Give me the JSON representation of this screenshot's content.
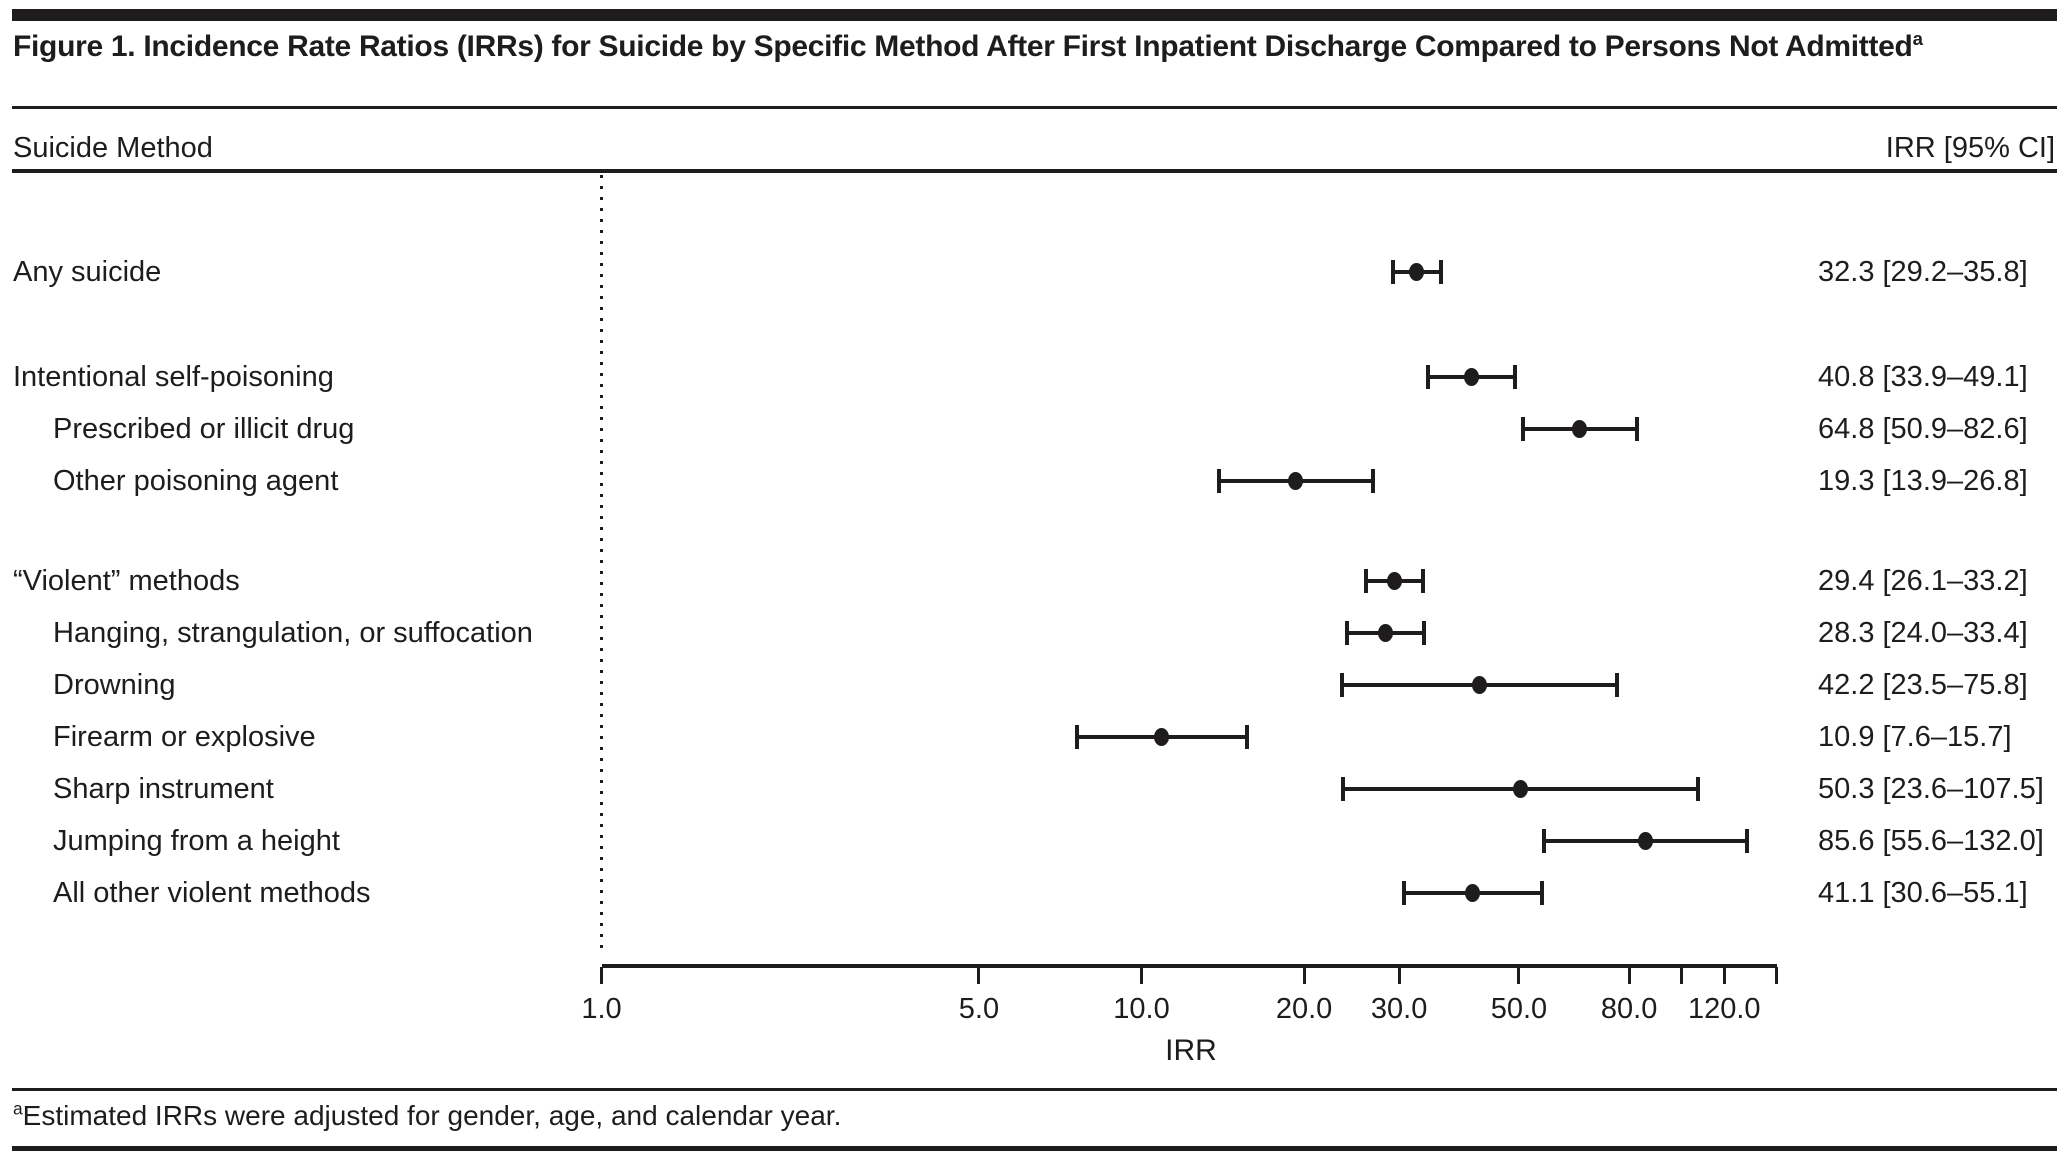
{
  "figure": {
    "title": "Figure 1. Incidence Rate Ratios (IRRs) for Suicide by Specific Method After First Inpatient Discharge Compared to Persons Not Admitted",
    "title_superscript": "a",
    "footnote_superscript": "a",
    "footnote": "Estimated IRRs were adjusted for gender, age, and calendar year."
  },
  "table_header": {
    "left": "Suicide Method",
    "right": "IRR [95% CI]"
  },
  "colors": {
    "ink": "#1e1c1d",
    "background": "#ffffff"
  },
  "chart_data": {
    "type": "scatter",
    "subtype": "forest-plot",
    "title": "Figure 1. Incidence Rate Ratios (IRRs) for Suicide by Specific Method After First Inpatient Discharge Compared to Persons Not Admitted",
    "xlabel": "IRR",
    "x_axis": {
      "scale": "log10",
      "min": 1.0,
      "max": 150,
      "reference_line_value": 1.0,
      "ticks": [
        {
          "value": 1.0,
          "label": "1.0"
        },
        {
          "value": 5.0,
          "label": "5.0"
        },
        {
          "value": 10.0,
          "label": "10.0"
        },
        {
          "value": 20.0,
          "label": "20.0"
        },
        {
          "value": 30.0,
          "label": "30.0"
        },
        {
          "value": 50.0,
          "label": "50.0"
        },
        {
          "value": 80.0,
          "label": "80.0"
        },
        {
          "value": 100.0,
          "label": ""
        },
        {
          "value": 120.0,
          "label": "120.0"
        },
        {
          "value": 150.0,
          "label": ""
        }
      ]
    },
    "rows": [
      {
        "label": "Any suicide",
        "indent": 0,
        "irr": 32.3,
        "ci_low": 29.2,
        "ci_high": 35.8,
        "value_text": "32.3 [29.2–35.8]"
      },
      {
        "label": "Intentional self-poisoning",
        "indent": 0,
        "irr": 40.8,
        "ci_low": 33.9,
        "ci_high": 49.1,
        "value_text": "40.8 [33.9–49.1]"
      },
      {
        "label": "Prescribed or illicit drug",
        "indent": 1,
        "irr": 64.8,
        "ci_low": 50.9,
        "ci_high": 82.6,
        "value_text": "64.8 [50.9–82.6]"
      },
      {
        "label": "Other poisoning agent",
        "indent": 1,
        "irr": 19.3,
        "ci_low": 13.9,
        "ci_high": 26.8,
        "value_text": "19.3 [13.9–26.8]"
      },
      {
        "label": "“Violent” methods",
        "indent": 0,
        "irr": 29.4,
        "ci_low": 26.1,
        "ci_high": 33.2,
        "value_text": "29.4 [26.1–33.2]"
      },
      {
        "label": "Hanging, strangulation, or suffocation",
        "indent": 1,
        "irr": 28.3,
        "ci_low": 24.0,
        "ci_high": 33.4,
        "value_text": "28.3 [24.0–33.4]"
      },
      {
        "label": "Drowning",
        "indent": 1,
        "irr": 42.2,
        "ci_low": 23.5,
        "ci_high": 75.8,
        "value_text": "42.2 [23.5–75.8]"
      },
      {
        "label": "Firearm or explosive",
        "indent": 1,
        "irr": 10.9,
        "ci_low": 7.6,
        "ci_high": 15.7,
        "value_text": "10.9 [7.6–15.7]"
      },
      {
        "label": "Sharp instrument",
        "indent": 1,
        "irr": 50.3,
        "ci_low": 23.6,
        "ci_high": 107.5,
        "value_text": "50.3 [23.6–107.5]"
      },
      {
        "label": "Jumping from a height",
        "indent": 1,
        "irr": 85.6,
        "ci_low": 55.6,
        "ci_high": 132.0,
        "value_text": "85.6 [55.6–132.0]"
      },
      {
        "label": "All other violent methods",
        "indent": 1,
        "irr": 41.1,
        "ci_low": 30.6,
        "ci_high": 55.1,
        "value_text": "41.1 [30.6–55.1]"
      }
    ]
  }
}
